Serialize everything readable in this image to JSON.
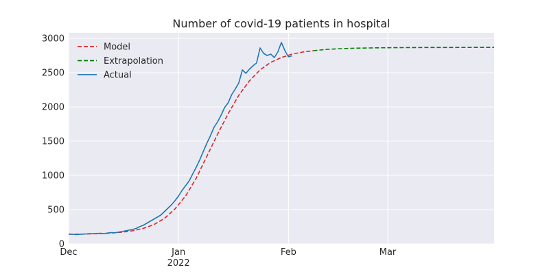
{
  "chart_data": {
    "type": "line",
    "title": "Number of covid-19 patients in hospital",
    "xlabel": "",
    "ylabel": "",
    "x_axis": {
      "type": "date",
      "range": [
        "2021-12-01",
        "2022-03-31"
      ],
      "ticks": [
        {
          "date": "2021-12-01",
          "label": "Dec",
          "sublabel": ""
        },
        {
          "date": "2022-01-01",
          "label": "Jan",
          "sublabel": "2022"
        },
        {
          "date": "2022-02-01",
          "label": "Feb",
          "sublabel": ""
        },
        {
          "date": "2022-03-01",
          "label": "Mar",
          "sublabel": ""
        }
      ]
    },
    "y_axis": {
      "range": [
        0,
        3080
      ],
      "ticks": [
        0,
        500,
        1000,
        1500,
        2000,
        2500,
        3000
      ]
    },
    "grid": true,
    "legend": "top-left",
    "series": [
      {
        "name": "Model",
        "style": "dashed",
        "color": "#d62728",
        "points": [
          [
            "2021-12-01",
            140
          ],
          [
            "2021-12-04",
            142
          ],
          [
            "2021-12-07",
            145
          ],
          [
            "2021-12-10",
            150
          ],
          [
            "2021-12-13",
            158
          ],
          [
            "2021-12-16",
            170
          ],
          [
            "2021-12-19",
            190
          ],
          [
            "2021-12-22",
            225
          ],
          [
            "2021-12-25",
            280
          ],
          [
            "2021-12-28",
            370
          ],
          [
            "2021-12-31",
            510
          ],
          [
            "2022-01-03",
            700
          ],
          [
            "2022-01-06",
            960
          ],
          [
            "2022-01-09",
            1280
          ],
          [
            "2022-01-12",
            1600
          ],
          [
            "2022-01-15",
            1900
          ],
          [
            "2022-01-18",
            2170
          ],
          [
            "2022-01-21",
            2380
          ],
          [
            "2022-01-24",
            2540
          ],
          [
            "2022-01-27",
            2650
          ],
          [
            "2022-01-30",
            2720
          ],
          [
            "2022-02-02",
            2770
          ],
          [
            "2022-02-05",
            2800
          ],
          [
            "2022-02-08",
            2820
          ]
        ]
      },
      {
        "name": "Extrapolation",
        "style": "dashed",
        "color": "#008000",
        "points": [
          [
            "2022-02-08",
            2820
          ],
          [
            "2022-02-12",
            2840
          ],
          [
            "2022-02-16",
            2850
          ],
          [
            "2022-02-20",
            2857
          ],
          [
            "2022-02-26",
            2862
          ],
          [
            "2022-03-05",
            2865
          ],
          [
            "2022-03-15",
            2867
          ],
          [
            "2022-03-31",
            2868
          ]
        ]
      },
      {
        "name": "Actual",
        "style": "solid",
        "color": "#1f77b4",
        "points": [
          [
            "2021-12-01",
            145
          ],
          [
            "2021-12-02",
            140
          ],
          [
            "2021-12-03",
            135
          ],
          [
            "2021-12-04",
            138
          ],
          [
            "2021-12-05",
            142
          ],
          [
            "2021-12-06",
            145
          ],
          [
            "2021-12-07",
            150
          ],
          [
            "2021-12-08",
            148
          ],
          [
            "2021-12-09",
            152
          ],
          [
            "2021-12-10",
            155
          ],
          [
            "2021-12-11",
            150
          ],
          [
            "2021-12-12",
            158
          ],
          [
            "2021-12-13",
            165
          ],
          [
            "2021-12-14",
            162
          ],
          [
            "2021-12-15",
            170
          ],
          [
            "2021-12-16",
            180
          ],
          [
            "2021-12-17",
            190
          ],
          [
            "2021-12-18",
            200
          ],
          [
            "2021-12-19",
            210
          ],
          [
            "2021-12-20",
            225
          ],
          [
            "2021-12-21",
            250
          ],
          [
            "2021-12-22",
            270
          ],
          [
            "2021-12-23",
            300
          ],
          [
            "2021-12-24",
            330
          ],
          [
            "2021-12-25",
            360
          ],
          [
            "2021-12-26",
            390
          ],
          [
            "2021-12-27",
            420
          ],
          [
            "2021-12-28",
            470
          ],
          [
            "2021-12-29",
            520
          ],
          [
            "2021-12-30",
            570
          ],
          [
            "2021-12-31",
            630
          ],
          [
            "2022-01-01",
            700
          ],
          [
            "2022-01-02",
            780
          ],
          [
            "2022-01-03",
            850
          ],
          [
            "2022-01-04",
            920
          ],
          [
            "2022-01-05",
            1020
          ],
          [
            "2022-01-06",
            1120
          ],
          [
            "2022-01-07",
            1230
          ],
          [
            "2022-01-08",
            1350
          ],
          [
            "2022-01-09",
            1470
          ],
          [
            "2022-01-10",
            1580
          ],
          [
            "2022-01-11",
            1700
          ],
          [
            "2022-01-12",
            1780
          ],
          [
            "2022-01-13",
            1880
          ],
          [
            "2022-01-14",
            1990
          ],
          [
            "2022-01-15",
            2060
          ],
          [
            "2022-01-16",
            2180
          ],
          [
            "2022-01-17",
            2260
          ],
          [
            "2022-01-18",
            2350
          ],
          [
            "2022-01-19",
            2540
          ],
          [
            "2022-01-20",
            2490
          ],
          [
            "2022-01-21",
            2550
          ],
          [
            "2022-01-22",
            2600
          ],
          [
            "2022-01-23",
            2640
          ],
          [
            "2022-01-24",
            2860
          ],
          [
            "2022-01-25",
            2780
          ],
          [
            "2022-01-26",
            2750
          ],
          [
            "2022-01-27",
            2770
          ],
          [
            "2022-01-28",
            2720
          ],
          [
            "2022-01-29",
            2800
          ],
          [
            "2022-01-30",
            2940
          ],
          [
            "2022-01-31",
            2820
          ],
          [
            "2022-02-01",
            2730
          ],
          [
            "2022-02-02",
            2745
          ]
        ]
      }
    ]
  }
}
